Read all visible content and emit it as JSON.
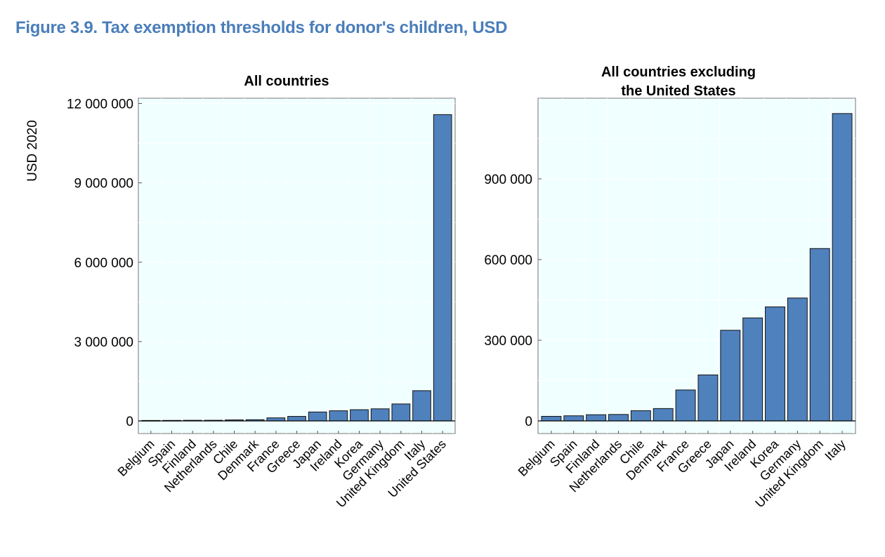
{
  "figure_title": "Figure 3.9. Tax exemption thresholds for donor's children, USD",
  "colors": {
    "bar": "#4f81bd",
    "plot_bg": "#f0ffff",
    "title": "#4a7ebb"
  },
  "chart_data": [
    {
      "type": "bar",
      "title": "All countries",
      "title_lines": [
        "All countries"
      ],
      "ylabel": "USD 2020",
      "xlabel": "",
      "ylim": [
        0,
        12200000
      ],
      "yticks": [
        0,
        3000000,
        6000000,
        9000000,
        12000000
      ],
      "ytick_labels": [
        "0",
        "3 000 000",
        "6 000 000",
        "9 000 000",
        "12 000 000"
      ],
      "categories": [
        "Belgium",
        "Spain",
        "Finland",
        "Netherlands",
        "Chile",
        "Denmark",
        "France",
        "Greece",
        "Japan",
        "Ireland",
        "Korea",
        "Germany",
        "United Kingdom",
        "Italy",
        "United States"
      ],
      "values": [
        17000,
        19000,
        23000,
        24000,
        38000,
        46000,
        115000,
        171000,
        337000,
        383000,
        424000,
        457000,
        641000,
        1143000,
        11580000
      ],
      "grid": true
    },
    {
      "type": "bar",
      "title": "All countries excluding the United States",
      "title_lines": [
        "All countries excluding",
        "the United States"
      ],
      "ylabel": "",
      "xlabel": "",
      "ylim": [
        0,
        1200000
      ],
      "yticks": [
        0,
        300000,
        600000,
        900000
      ],
      "ytick_labels": [
        "0",
        "300 000",
        "600 000",
        "900 000"
      ],
      "categories": [
        "Belgium",
        "Spain",
        "Finland",
        "Netherlands",
        "Chile",
        "Denmark",
        "France",
        "Greece",
        "Japan",
        "Ireland",
        "Korea",
        "Germany",
        "United Kingdom",
        "Italy"
      ],
      "values": [
        17000,
        19000,
        23000,
        24000,
        38000,
        46000,
        115000,
        171000,
        337000,
        383000,
        424000,
        457000,
        641000,
        1143000
      ],
      "grid": true
    }
  ]
}
